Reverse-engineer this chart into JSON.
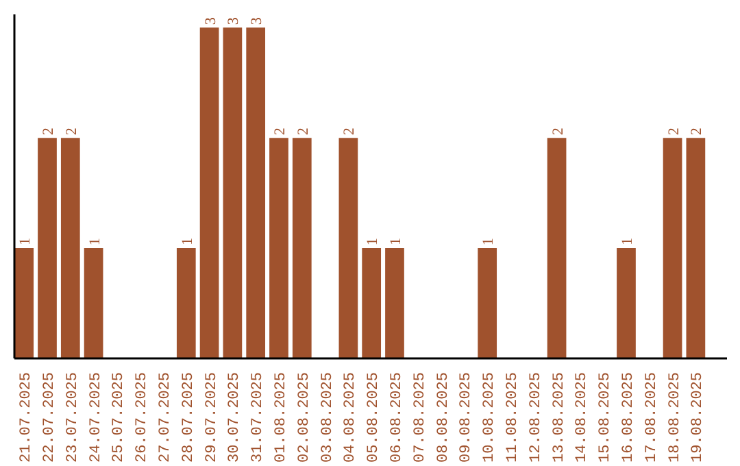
{
  "chart_data": {
    "type": "bar",
    "categories": [
      "21.07.2025",
      "22.07.2025",
      "23.07.2025",
      "24.07.2025",
      "25.07.2025",
      "26.07.2025",
      "27.07.2025",
      "28.07.2025",
      "29.07.2025",
      "30.07.2025",
      "31.07.2025",
      "01.08.2025",
      "02.08.2025",
      "03.08.2025",
      "04.08.2025",
      "05.08.2025",
      "06.08.2025",
      "07.08.2025",
      "08.08.2025",
      "09.08.2025",
      "10.08.2025",
      "11.08.2025",
      "12.08.2025",
      "13.08.2025",
      "14.08.2025",
      "15.08.2025",
      "16.08.2025",
      "17.08.2025",
      "18.08.2025",
      "19.08.2025"
    ],
    "values": [
      1,
      2,
      2,
      1,
      0,
      0,
      0,
      1,
      3,
      3,
      3,
      2,
      2,
      0,
      2,
      1,
      1,
      0,
      0,
      0,
      1,
      0,
      0,
      2,
      0,
      0,
      1,
      0,
      2,
      2
    ],
    "value_labels": [
      "1",
      "2",
      "2",
      "1",
      null,
      null,
      null,
      "1",
      "3",
      "3",
      "3",
      "2",
      "2",
      null,
      "2",
      "1",
      "1",
      null,
      null,
      null,
      "1",
      null,
      null,
      "2",
      null,
      null,
      "1",
      null,
      "2",
      "2"
    ],
    "color": "#a0522d",
    "ylim": [
      0,
      3.12
    ],
    "tick_labels": "x",
    "grid": false
  }
}
